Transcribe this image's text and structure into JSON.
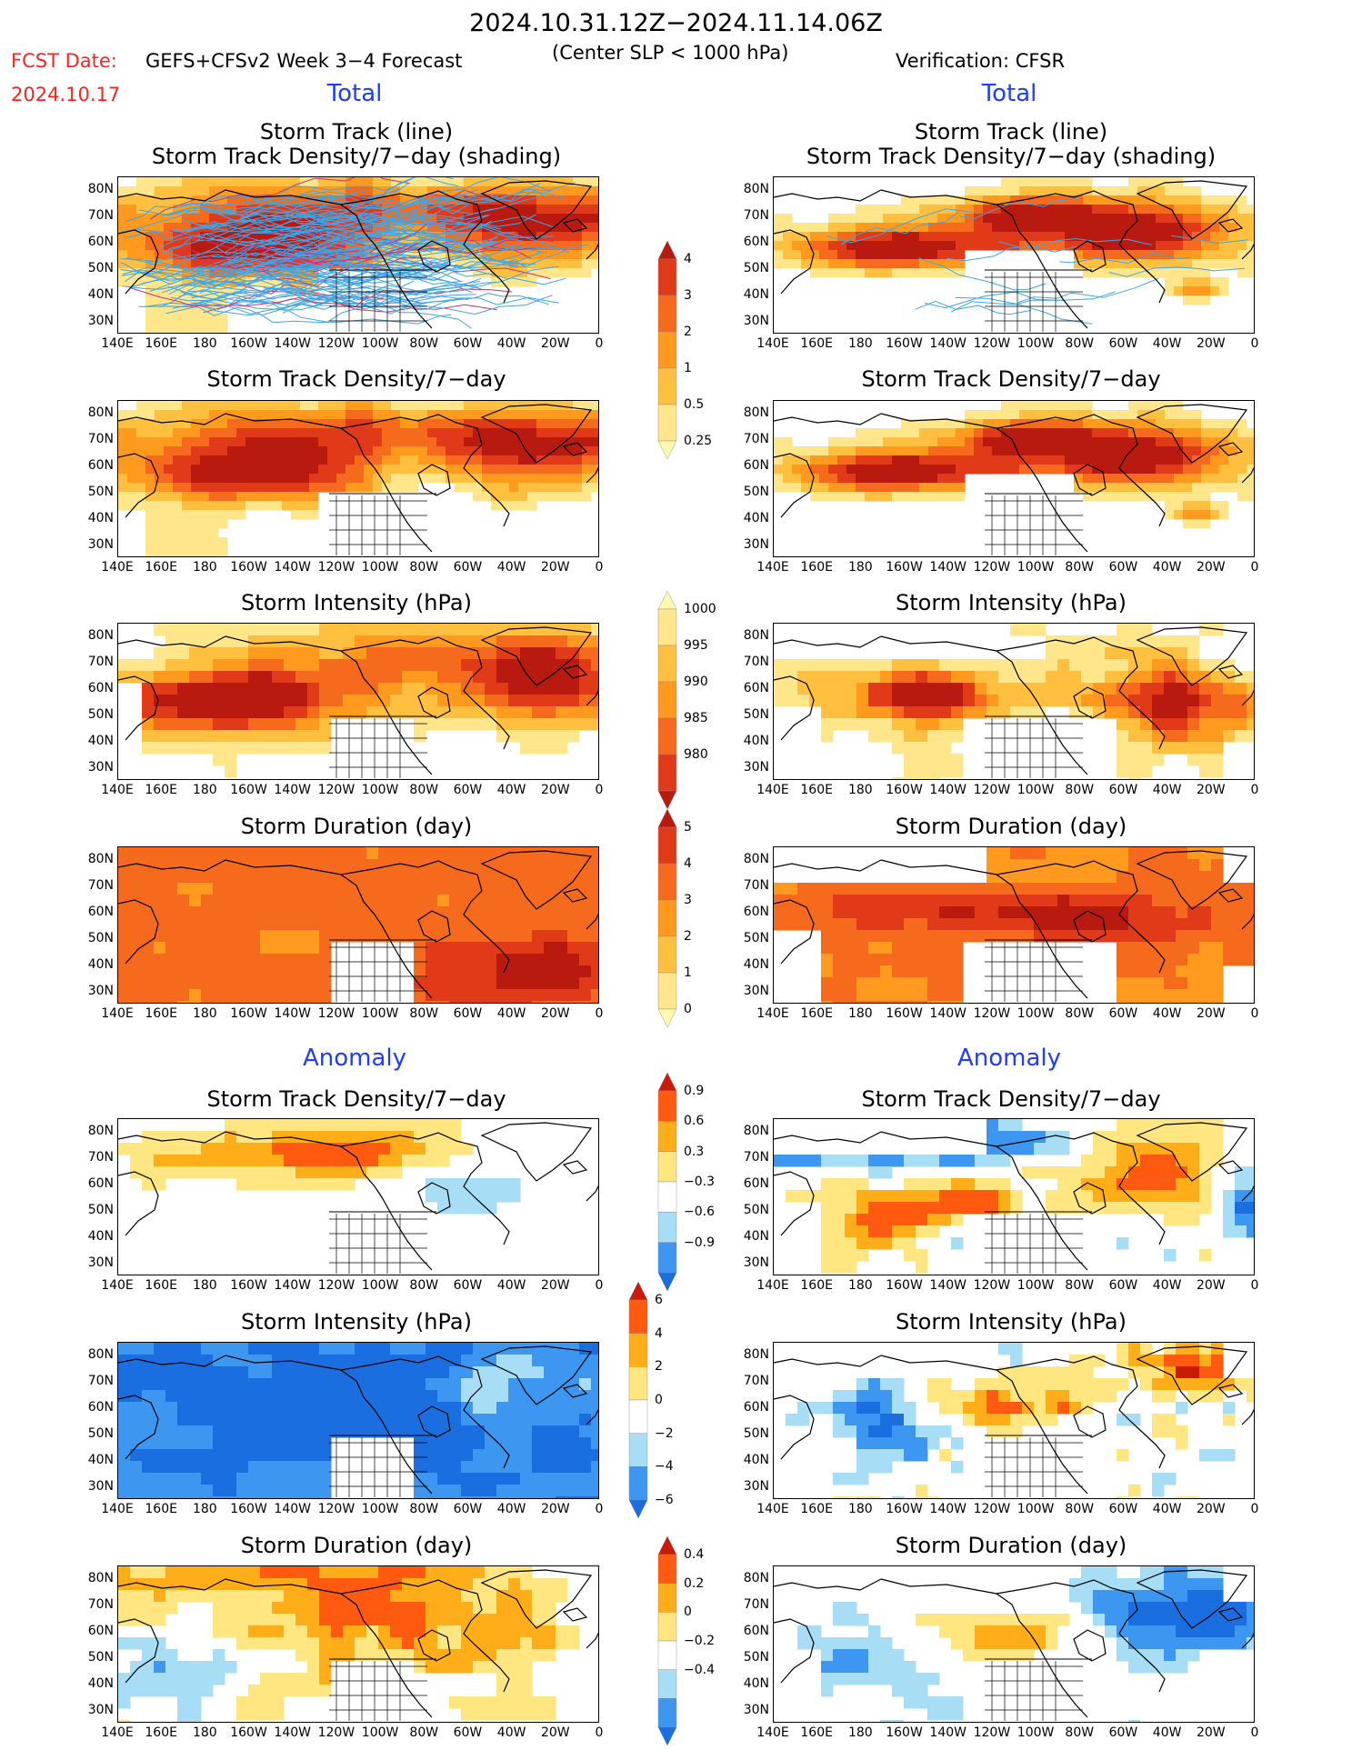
{
  "header": {
    "title": "2024.10.31.12Z−2024.11.14.06Z",
    "fcst_label": "FCST Date:",
    "fcst_date": "2024.10.17",
    "model_label": "GEFS+CFSv2 Week 3−4 Forecast",
    "criterion": "(Center SLP < 1000 hPa)",
    "verification": "Verification: CFSR"
  },
  "sections": {
    "total_left": "Total",
    "total_right": "Total",
    "anomaly_left": "Anomaly",
    "anomaly_right": "Anomaly"
  },
  "panel_titles": {
    "track_line_1": "Storm Track (line)",
    "track_line_2": "Storm Track Density/7−day (shading)",
    "density": "Storm Track Density/7−day",
    "intensity": "Storm Intensity (hPa)",
    "duration": "Storm Duration (day)"
  },
  "axes": {
    "lat_ticks": [
      "80N",
      "70N",
      "60N",
      "50N",
      "40N",
      "30N"
    ],
    "lon_ticks": [
      "140E",
      "160E",
      "180",
      "160W",
      "140W",
      "120W",
      "100W",
      "80W",
      "60W",
      "40W",
      "20W",
      "0"
    ]
  },
  "colors": {
    "total_scale": [
      "#fff8b0",
      "#ffe68a",
      "#ffc040",
      "#ff9a1e",
      "#f56a1c",
      "#e03a18",
      "#b81a10"
    ],
    "anomaly_scale": [
      "#1a6ee0",
      "#3d97f0",
      "#a8def5",
      "#ffffff",
      "#ffe680",
      "#ffae1a",
      "#ff5a10",
      "#cc1a0a"
    ],
    "track_line": "#3fa6e8",
    "track_line_dark": "#d0306a"
  },
  "colorbars": [
    {
      "id": "density-total",
      "labels": [
        "4",
        "3",
        "2",
        "1",
        "0.5",
        "0.25"
      ]
    },
    {
      "id": "intensity-total",
      "labels": [
        "1000",
        "995",
        "990",
        "985",
        "980"
      ]
    },
    {
      "id": "duration-total",
      "labels": [
        "5",
        "4",
        "3",
        "2",
        "1",
        "0"
      ]
    },
    {
      "id": "density-anom",
      "labels": [
        "0.9",
        "0.6",
        "0.3",
        "−0.3",
        "−0.6",
        "−0.9"
      ]
    },
    {
      "id": "intensity-anom",
      "labels": [
        "6",
        "4",
        "2",
        "0",
        "−2",
        "−4",
        "−6"
      ]
    },
    {
      "id": "duration-anom",
      "labels": [
        "0.4",
        "0.2",
        "0",
        "−0.2",
        "−0.4"
      ]
    }
  ],
  "chart_data": [
    {
      "type": "heatmap",
      "title": "Storm Track (line) / Storm Track Density/7-day (shading)",
      "column": "GEFS+CFSv2 Week 3-4 Forecast",
      "section": "Total",
      "xlim": [
        "140E",
        "0"
      ],
      "ylim": [
        "25N",
        "85N"
      ],
      "legend": [
        "4",
        "3",
        "2",
        "1",
        "0.5",
        "0.25"
      ]
    },
    {
      "type": "heatmap",
      "title": "Storm Track (line) / Storm Track Density/7-day (shading)",
      "column": "Verification: CFSR",
      "section": "Total",
      "xlim": [
        "140E",
        "0"
      ],
      "ylim": [
        "25N",
        "85N"
      ],
      "legend": [
        "4",
        "3",
        "2",
        "1",
        "0.5",
        "0.25"
      ]
    },
    {
      "type": "heatmap",
      "title": "Storm Track Density/7-day",
      "column": "GEFS+CFSv2 Week 3-4 Forecast",
      "section": "Total",
      "xlim": [
        "140E",
        "0"
      ],
      "ylim": [
        "25N",
        "85N"
      ]
    },
    {
      "type": "heatmap",
      "title": "Storm Track Density/7-day",
      "column": "Verification: CFSR",
      "section": "Total",
      "xlim": [
        "140E",
        "0"
      ],
      "ylim": [
        "25N",
        "85N"
      ]
    },
    {
      "type": "heatmap",
      "title": "Storm Intensity (hPa)",
      "column": "GEFS+CFSv2 Week 3-4 Forecast",
      "section": "Total",
      "legend": [
        "1000",
        "995",
        "990",
        "985",
        "980"
      ]
    },
    {
      "type": "heatmap",
      "title": "Storm Intensity (hPa)",
      "column": "Verification: CFSR",
      "section": "Total",
      "legend": [
        "1000",
        "995",
        "990",
        "985",
        "980"
      ]
    },
    {
      "type": "heatmap",
      "title": "Storm Duration (day)",
      "column": "GEFS+CFSv2 Week 3-4 Forecast",
      "section": "Total",
      "legend": [
        "5",
        "4",
        "3",
        "2",
        "1",
        "0"
      ]
    },
    {
      "type": "heatmap",
      "title": "Storm Duration (day)",
      "column": "Verification: CFSR",
      "section": "Total",
      "legend": [
        "5",
        "4",
        "3",
        "2",
        "1",
        "0"
      ]
    },
    {
      "type": "heatmap",
      "title": "Storm Track Density/7-day",
      "column": "GEFS+CFSv2 Week 3-4 Forecast",
      "section": "Anomaly",
      "legend": [
        "0.9",
        "0.6",
        "0.3",
        "-0.3",
        "-0.6",
        "-0.9"
      ]
    },
    {
      "type": "heatmap",
      "title": "Storm Track Density/7-day",
      "column": "Verification: CFSR",
      "section": "Anomaly",
      "legend": [
        "0.9",
        "0.6",
        "0.3",
        "-0.3",
        "-0.6",
        "-0.9"
      ]
    },
    {
      "type": "heatmap",
      "title": "Storm Intensity (hPa)",
      "column": "GEFS+CFSv2 Week 3-4 Forecast",
      "section": "Anomaly",
      "legend": [
        "6",
        "4",
        "2",
        "0",
        "-2",
        "-4",
        "-6"
      ]
    },
    {
      "type": "heatmap",
      "title": "Storm Intensity (hPa)",
      "column": "Verification: CFSR",
      "section": "Anomaly",
      "legend": [
        "6",
        "4",
        "2",
        "0",
        "-2",
        "-4",
        "-6"
      ]
    },
    {
      "type": "heatmap",
      "title": "Storm Duration (day)",
      "column": "GEFS+CFSv2 Week 3-4 Forecast",
      "section": "Anomaly",
      "legend": [
        "0.4",
        "0.2",
        "0",
        "-0.2",
        "-0.4"
      ]
    },
    {
      "type": "heatmap",
      "title": "Storm Duration (day)",
      "column": "Verification: CFSR",
      "section": "Anomaly",
      "legend": [
        "0.4",
        "0.2",
        "0",
        "-0.2",
        "-0.4"
      ]
    }
  ]
}
